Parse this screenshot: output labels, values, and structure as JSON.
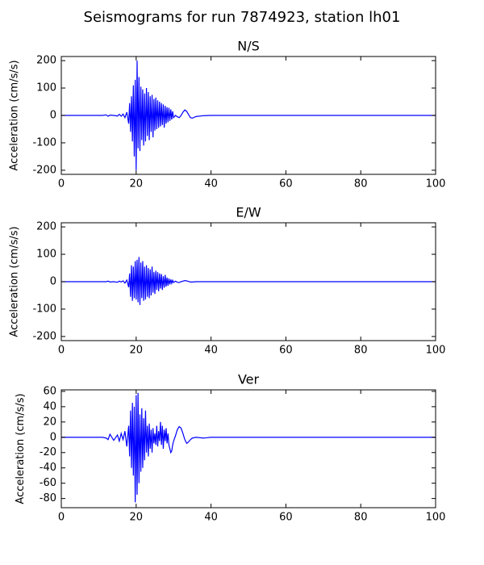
{
  "title": "Seismograms for run 7874923, station lh01",
  "chart_data": [
    {
      "type": "line",
      "title": "N/S",
      "ylabel": "Acceleration (cm/s/s)",
      "x": [
        0,
        10,
        11,
        12,
        12.5,
        13,
        14,
        15,
        15.5,
        16,
        16.5,
        17,
        17.5,
        18,
        18.25,
        18.5,
        18.75,
        19,
        19.25,
        19.5,
        19.75,
        20,
        20.25,
        20.5,
        20.75,
        21,
        21.25,
        21.5,
        21.75,
        22,
        22.25,
        22.5,
        22.75,
        23,
        23.25,
        23.5,
        23.75,
        24,
        24.25,
        24.5,
        24.75,
        25,
        25.25,
        25.5,
        25.75,
        26,
        26.25,
        26.5,
        26.75,
        27,
        27.25,
        27.5,
        27.75,
        28,
        28.25,
        28.5,
        28.75,
        29,
        29.25,
        29.5,
        29.75,
        30,
        30.5,
        31,
        31.5,
        32,
        32.5,
        33,
        33.5,
        34,
        34.5,
        35,
        36,
        38,
        40,
        50,
        100
      ],
      "series": [
        {
          "color": "#0000ff",
          "values": [
            0,
            0,
            0,
            2,
            -3,
            1,
            0,
            -2,
            4,
            -3,
            5,
            -8,
            12,
            -30,
            45,
            -60,
            70,
            -95,
            110,
            -150,
            130,
            -200,
            200,
            -120,
            140,
            -130,
            105,
            -90,
            95,
            -110,
            80,
            -95,
            100,
            -75,
            85,
            -90,
            70,
            -60,
            75,
            -80,
            60,
            -55,
            65,
            -50,
            55,
            -45,
            50,
            -40,
            45,
            -35,
            40,
            -45,
            35,
            -30,
            30,
            -25,
            28,
            -20,
            22,
            -15,
            15,
            -8,
            0,
            -5,
            -8,
            0,
            12,
            20,
            15,
            3,
            -8,
            -10,
            -4,
            -1,
            0,
            0,
            0
          ]
        }
      ],
      "xlim": [
        0,
        100
      ],
      "xticks": [
        0,
        20,
        40,
        60,
        80,
        100
      ],
      "ylim": [
        -215,
        215
      ],
      "yticks": [
        -200,
        -100,
        0,
        100,
        200
      ]
    },
    {
      "type": "line",
      "title": "E/W",
      "ylabel": "Acceleration (cm/s/s)",
      "x": [
        0,
        10,
        11,
        12,
        12.5,
        13,
        14,
        15,
        15.5,
        16,
        16.5,
        17,
        17.5,
        18,
        18.25,
        18.5,
        18.75,
        19,
        19.25,
        19.5,
        19.75,
        20,
        20.25,
        20.5,
        20.75,
        21,
        21.25,
        21.5,
        21.75,
        22,
        22.25,
        22.5,
        22.75,
        23,
        23.25,
        23.5,
        23.75,
        24,
        24.25,
        24.5,
        24.75,
        25,
        25.25,
        25.5,
        25.75,
        26,
        26.25,
        26.5,
        26.75,
        27,
        27.25,
        27.5,
        27.75,
        28,
        28.25,
        28.5,
        28.75,
        29,
        29.25,
        29.5,
        29.75,
        30,
        30.5,
        31,
        31.5,
        32,
        32.5,
        33,
        33.5,
        34,
        34.5,
        35,
        36,
        38,
        40,
        50,
        100
      ],
      "series": [
        {
          "color": "#0000ff",
          "values": [
            0,
            0,
            0,
            0,
            2,
            -1,
            0,
            -2,
            2,
            -1,
            3,
            -5,
            6,
            -20,
            30,
            -55,
            60,
            -70,
            55,
            -60,
            75,
            -65,
            80,
            -75,
            90,
            -85,
            70,
            -60,
            75,
            -70,
            55,
            -65,
            60,
            -55,
            50,
            -60,
            45,
            -50,
            55,
            -40,
            35,
            -45,
            40,
            -30,
            35,
            -35,
            30,
            -25,
            28,
            -30,
            20,
            -22,
            25,
            -18,
            15,
            -15,
            12,
            -10,
            8,
            -6,
            5,
            -3,
            2,
            -2,
            -3,
            0,
            2,
            4,
            3,
            1,
            -1,
            -1,
            0,
            0,
            0,
            0,
            0
          ]
        }
      ],
      "xlim": [
        0,
        100
      ],
      "xticks": [
        0,
        20,
        40,
        60,
        80,
        100
      ],
      "ylim": [
        -215,
        215
      ],
      "yticks": [
        -200,
        -100,
        0,
        100,
        200
      ]
    },
    {
      "type": "line",
      "title": "Ver",
      "ylabel": "Acceleration (cm/s/s)",
      "x": [
        0,
        10,
        11,
        12,
        12.5,
        13,
        14,
        15,
        15.5,
        16,
        16.5,
        17,
        17.5,
        18,
        18.25,
        18.5,
        18.75,
        19,
        19.25,
        19.5,
        19.75,
        20,
        20.25,
        20.5,
        20.75,
        21,
        21.25,
        21.5,
        21.75,
        22,
        22.25,
        22.5,
        22.75,
        23,
        23.25,
        23.5,
        23.75,
        24,
        24.25,
        24.5,
        24.75,
        25,
        25.25,
        25.5,
        25.75,
        26,
        26.25,
        26.5,
        26.75,
        27,
        27.25,
        27.5,
        27.75,
        28,
        28.25,
        28.5,
        28.75,
        29,
        29.25,
        29.5,
        29.75,
        30,
        30.5,
        31,
        31.5,
        32,
        32.5,
        33,
        33.5,
        34,
        34.5,
        35,
        36,
        38,
        40,
        50,
        100
      ],
      "series": [
        {
          "color": "#0000ff",
          "values": [
            0,
            0,
            0,
            -1,
            -3,
            4,
            -4,
            3,
            -5,
            5,
            -3,
            8,
            -12,
            15,
            -25,
            35,
            -40,
            45,
            -50,
            40,
            -85,
            55,
            -75,
            58,
            -60,
            30,
            -45,
            38,
            -40,
            25,
            -30,
            35,
            -20,
            15,
            -25,
            18,
            -15,
            10,
            -20,
            12,
            -8,
            5,
            -10,
            15,
            -12,
            8,
            -5,
            20,
            -10,
            15,
            -15,
            10,
            -5,
            12,
            -8,
            5,
            -10,
            -15,
            -20,
            -18,
            -10,
            -5,
            2,
            10,
            14,
            12,
            5,
            -3,
            -8,
            -6,
            -3,
            -1,
            0,
            -1,
            0,
            0,
            0
          ]
        }
      ],
      "xlim": [
        0,
        100
      ],
      "xticks": [
        0,
        20,
        40,
        60,
        80,
        100
      ],
      "ylim": [
        -92,
        62
      ],
      "yticks": [
        -80,
        -60,
        -40,
        -20,
        0,
        20,
        40,
        60
      ]
    }
  ]
}
